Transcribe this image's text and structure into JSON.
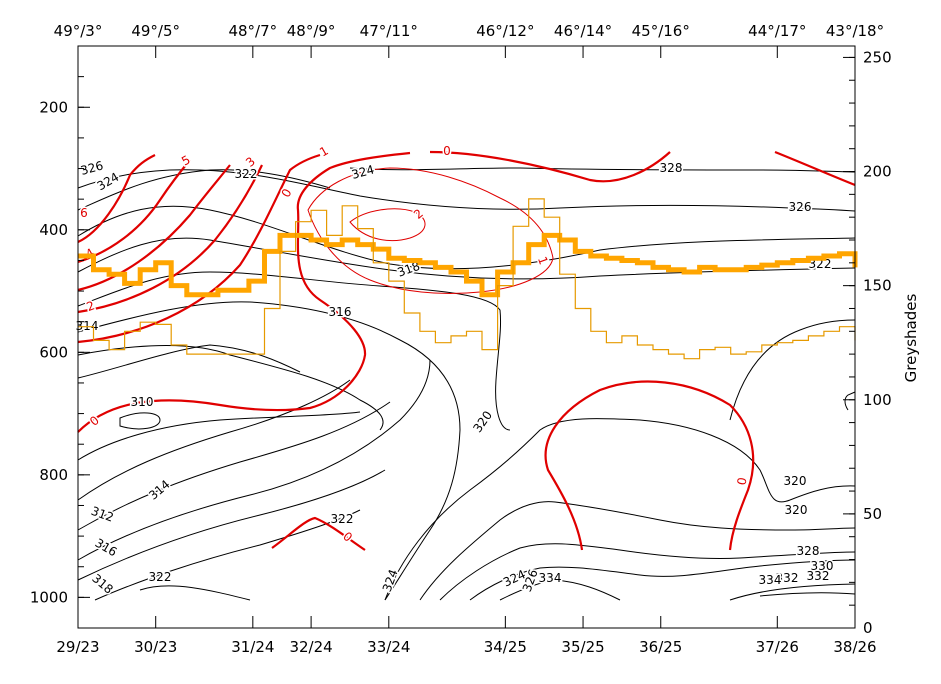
{
  "chart_data": {
    "type": "line",
    "title": "",
    "left_axis": {
      "ylim": [
        1050,
        100
      ],
      "ticks": [
        200,
        400,
        600,
        800,
        1000
      ]
    },
    "right_axis": {
      "label": "Greyshades",
      "ylim": [
        0,
        255
      ],
      "ticks": [
        0,
        50,
        100,
        150,
        200,
        250
      ]
    },
    "x_positions": [
      0,
      1,
      2.25,
      3,
      4,
      5.5,
      6.5,
      7.5,
      9,
      10
    ],
    "bottom_tick_labels": [
      "29/23",
      "30/23",
      "31/24",
      "32/24",
      "33/24",
      "34/25",
      "35/25",
      "36/25",
      "37/26",
      "38/26"
    ],
    "top_tick_labels": [
      "49°/3°",
      "49°/5°",
      "48°/7°",
      "48°/9°",
      "47°/11°",
      "46°/12°",
      "46°/14°",
      "45°/16°",
      "44°/17°",
      "43°/18°"
    ],
    "colors": {
      "black_contour": "#000000",
      "red_contour": "#e00000",
      "thick_series": "#ffa500",
      "thin_series": "#e69a00"
    },
    "series": [
      {
        "style": "thick",
        "x": [
          0,
          0.2,
          0.4,
          0.6,
          0.8,
          1.0,
          1.2,
          1.4,
          1.6,
          1.8,
          2.0,
          2.2,
          2.4,
          2.6,
          2.8,
          3.0,
          3.2,
          3.4,
          3.6,
          3.8,
          4.0,
          4.2,
          4.4,
          4.6,
          4.8,
          5.0,
          5.2,
          5.4,
          5.6,
          5.8,
          6.0,
          6.2,
          6.4,
          6.6,
          6.8,
          7.0,
          7.2,
          7.4,
          7.6,
          7.8,
          8.0,
          8.2,
          8.4,
          8.6,
          8.8,
          9.0,
          9.2,
          9.4,
          9.6,
          9.8,
          10.0
        ],
        "values": [
          163,
          157,
          155,
          151,
          157,
          160,
          150,
          146,
          146,
          148,
          148,
          152,
          165,
          172,
          172,
          170,
          168,
          170,
          168,
          166,
          162,
          161,
          160,
          158,
          156,
          152,
          146,
          156,
          160,
          168,
          172,
          170,
          165,
          163,
          162,
          161,
          160,
          158,
          157,
          156,
          158,
          157,
          157,
          158,
          159,
          160,
          161,
          162,
          163,
          164,
          158
        ]
      },
      {
        "style": "thin",
        "x": [
          0,
          0.2,
          0.4,
          0.6,
          0.8,
          1.0,
          1.2,
          1.4,
          1.6,
          1.8,
          2.0,
          2.2,
          2.4,
          2.6,
          2.8,
          3.0,
          3.2,
          3.4,
          3.6,
          3.8,
          4.0,
          4.2,
          4.4,
          4.6,
          4.8,
          5.0,
          5.2,
          5.4,
          5.6,
          5.8,
          6.0,
          6.2,
          6.4,
          6.6,
          6.8,
          7.0,
          7.2,
          7.4,
          7.6,
          7.8,
          8.0,
          8.2,
          8.4,
          8.6,
          8.8,
          9.0,
          9.2,
          9.4,
          9.6,
          9.8,
          10.0
        ],
        "values": [
          132,
          126,
          122,
          130,
          134,
          133,
          124,
          120,
          120,
          120,
          120,
          120,
          140,
          165,
          178,
          183,
          172,
          185,
          175,
          160,
          152,
          138,
          130,
          125,
          128,
          130,
          122,
          150,
          176,
          188,
          180,
          155,
          140,
          130,
          125,
          128,
          124,
          122,
          120,
          118,
          122,
          123,
          120,
          121,
          124,
          125,
          126,
          128,
          130,
          132,
          126
        ]
      }
    ],
    "contour_labels_black": [
      "310",
      "312",
      "314",
      "314",
      "316",
      "316",
      "318",
      "318",
      "320",
      "320",
      "320",
      "322",
      "322",
      "322",
      "322",
      "324",
      "324",
      "324",
      "324",
      "326",
      "326",
      "326",
      "328",
      "328",
      "330",
      "332",
      "332",
      "334",
      "334"
    ],
    "contour_labels_red": [
      "0",
      "0",
      "0",
      "0",
      "0",
      "1",
      "1",
      "2",
      "2",
      "3",
      "4",
      "5",
      "6"
    ]
  }
}
